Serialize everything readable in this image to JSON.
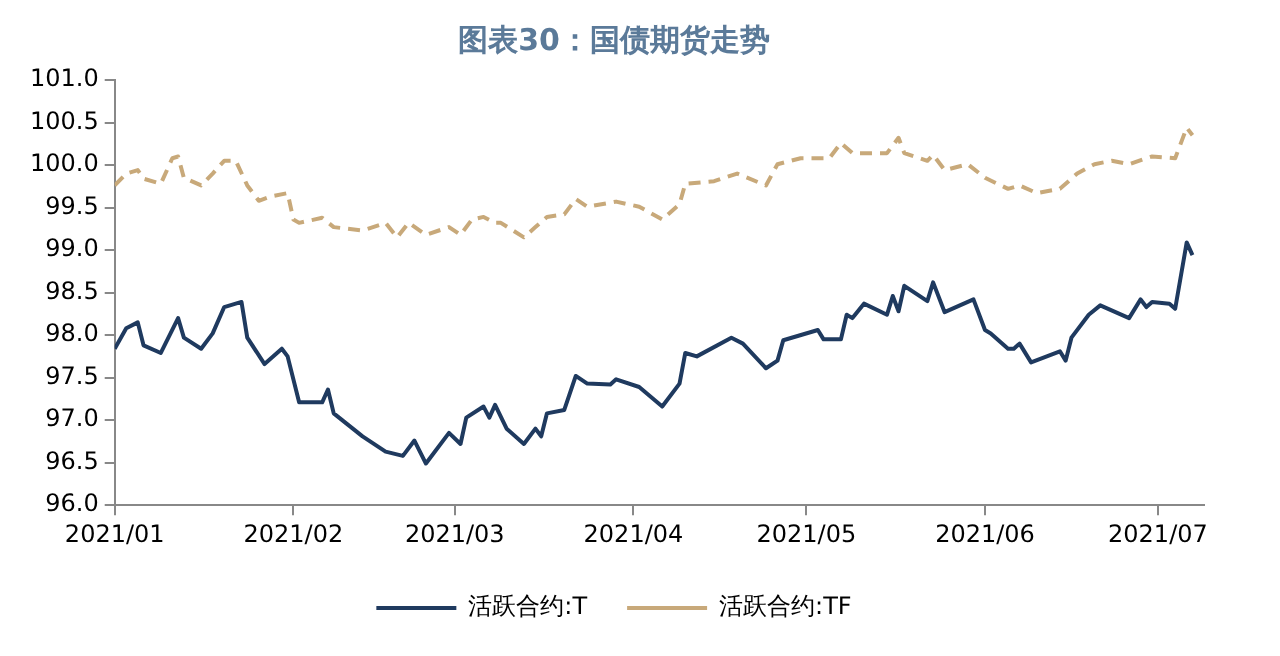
{
  "chart_data": {
    "type": "line",
    "title": "图表30：国债期货走势",
    "xlim": [
      "2021-01-01",
      "2021-07-09"
    ],
    "xticks": [
      {
        "value": "2021-01-01",
        "label": "2021/01"
      },
      {
        "value": "2021-02-01",
        "label": "2021/02"
      },
      {
        "value": "2021-03-01",
        "label": "2021/03"
      },
      {
        "value": "2021-04-01",
        "label": "2021/04"
      },
      {
        "value": "2021-05-01",
        "label": "2021/05"
      },
      {
        "value": "2021-06-01",
        "label": "2021/06"
      },
      {
        "value": "2021-07-01",
        "label": "2021/07"
      }
    ],
    "ylim": [
      96,
      101
    ],
    "yticks": [
      {
        "value": 96,
        "label": "96.0"
      },
      {
        "value": 96.5,
        "label": "96.5"
      },
      {
        "value": 97,
        "label": "97.0"
      },
      {
        "value": 97.5,
        "label": "97.5"
      },
      {
        "value": 98,
        "label": "98.0"
      },
      {
        "value": 98.5,
        "label": "98.5"
      },
      {
        "value": 99,
        "label": "99.0"
      },
      {
        "value": 99.5,
        "label": "99.5"
      },
      {
        "value": 100,
        "label": "100.0"
      },
      {
        "value": 100.5,
        "label": "100.5"
      },
      {
        "value": 101,
        "label": "101.0"
      }
    ],
    "grid": false,
    "legend": "bottom",
    "marker": "none",
    "series": [
      {
        "name": "活跃合约:T",
        "color": "#1f3a5f",
        "line_style": "solid",
        "x": [
          "2021-01-01",
          "2021-01-03",
          "2021-01-05",
          "2021-01-06",
          "2021-01-09",
          "2021-01-12",
          "2021-01-13",
          "2021-01-16",
          "2021-01-18",
          "2021-01-20",
          "2021-01-23",
          "2021-01-24",
          "2021-01-27",
          "2021-01-30",
          "2021-01-31",
          "2021-02-02",
          "2021-02-06",
          "2021-02-07",
          "2021-02-08",
          "2021-02-13",
          "2021-02-17",
          "2021-02-20",
          "2021-02-22",
          "2021-02-24",
          "2021-02-28",
          "2021-03-02",
          "2021-03-03",
          "2021-03-06",
          "2021-03-07",
          "2021-03-08",
          "2021-03-10",
          "2021-03-13",
          "2021-03-15",
          "2021-03-16",
          "2021-03-17",
          "2021-03-20",
          "2021-03-22",
          "2021-03-24",
          "2021-03-28",
          "2021-03-29",
          "2021-04-02",
          "2021-04-06",
          "2021-04-09",
          "2021-04-10",
          "2021-04-12",
          "2021-04-18",
          "2021-04-20",
          "2021-04-24",
          "2021-04-26",
          "2021-04-27",
          "2021-05-03",
          "2021-05-04",
          "2021-05-07",
          "2021-05-08",
          "2021-05-09",
          "2021-05-11",
          "2021-05-15",
          "2021-05-16",
          "2021-05-17",
          "2021-05-18",
          "2021-05-22",
          "2021-05-23",
          "2021-05-25",
          "2021-05-30",
          "2021-06-01",
          "2021-06-02",
          "2021-06-05",
          "2021-06-06",
          "2021-06-07",
          "2021-06-09",
          "2021-06-14",
          "2021-06-15",
          "2021-06-16",
          "2021-06-19",
          "2021-06-21",
          "2021-06-26",
          "2021-06-28",
          "2021-06-29",
          "2021-06-30",
          "2021-07-03",
          "2021-07-04",
          "2021-07-06",
          "2021-07-07"
        ],
        "values": [
          97.84,
          98.08,
          98.15,
          97.88,
          97.79,
          98.2,
          97.97,
          97.84,
          98.02,
          98.33,
          98.39,
          97.97,
          97.66,
          97.84,
          97.75,
          97.21,
          97.21,
          97.36,
          97.08,
          96.81,
          96.63,
          96.58,
          96.76,
          96.49,
          96.85,
          96.72,
          97.03,
          97.16,
          97.03,
          97.18,
          96.9,
          96.72,
          96.9,
          96.81,
          97.08,
          97.12,
          97.52,
          97.43,
          97.42,
          97.48,
          97.39,
          97.16,
          97.43,
          97.79,
          97.75,
          97.97,
          97.9,
          97.61,
          97.7,
          97.94,
          98.06,
          97.95,
          97.95,
          98.24,
          98.2,
          98.37,
          98.24,
          98.46,
          98.28,
          98.58,
          98.4,
          98.62,
          98.27,
          98.42,
          98.06,
          98.02,
          97.84,
          97.84,
          97.9,
          97.68,
          97.81,
          97.7,
          97.97,
          98.24,
          98.35,
          98.2,
          98.42,
          98.33,
          98.39,
          98.37,
          98.31,
          99.09,
          98.94
        ]
      },
      {
        "name": "活跃合约:TF",
        "color": "#c8a97a",
        "line_style": "dashed",
        "x": [
          "2021-01-01",
          "2021-01-03",
          "2021-01-05",
          "2021-01-06",
          "2021-01-09",
          "2021-01-11",
          "2021-01-12",
          "2021-01-13",
          "2021-01-16",
          "2021-01-18",
          "2021-01-20",
          "2021-01-22",
          "2021-01-24",
          "2021-01-26",
          "2021-01-28",
          "2021-01-31",
          "2021-02-01",
          "2021-02-02",
          "2021-02-06",
          "2021-02-08",
          "2021-02-13",
          "2021-02-17",
          "2021-02-19",
          "2021-02-21",
          "2021-02-24",
          "2021-02-28",
          "2021-03-02",
          "2021-03-04",
          "2021-03-06",
          "2021-03-08",
          "2021-03-09",
          "2021-03-13",
          "2021-03-15",
          "2021-03-17",
          "2021-03-20",
          "2021-03-22",
          "2021-03-24",
          "2021-03-29",
          "2021-04-02",
          "2021-04-06",
          "2021-04-09",
          "2021-04-10",
          "2021-04-15",
          "2021-04-19",
          "2021-04-24",
          "2021-04-26",
          "2021-04-30",
          "2021-05-05",
          "2021-05-07",
          "2021-05-09",
          "2021-05-15",
          "2021-05-17",
          "2021-05-18",
          "2021-05-22",
          "2021-05-23",
          "2021-05-25",
          "2021-05-29",
          "2021-06-01",
          "2021-06-05",
          "2021-06-07",
          "2021-06-10",
          "2021-06-14",
          "2021-06-17",
          "2021-06-20",
          "2021-06-23",
          "2021-06-26",
          "2021-06-29",
          "2021-06-30",
          "2021-07-04",
          "2021-07-06",
          "2021-07-07"
        ],
        "values": [
          99.76,
          99.9,
          99.94,
          99.84,
          99.78,
          100.08,
          100.1,
          99.85,
          99.76,
          99.9,
          100.05,
          100.05,
          99.76,
          99.58,
          99.63,
          99.67,
          99.36,
          99.32,
          99.38,
          99.27,
          99.23,
          99.32,
          99.15,
          99.32,
          99.18,
          99.27,
          99.18,
          99.36,
          99.39,
          99.32,
          99.32,
          99.15,
          99.27,
          99.39,
          99.42,
          99.6,
          99.51,
          99.57,
          99.51,
          99.36,
          99.54,
          99.78,
          99.81,
          99.9,
          99.76,
          100.01,
          100.08,
          100.08,
          100.26,
          100.14,
          100.14,
          100.32,
          100.14,
          100.05,
          100.12,
          99.94,
          100.01,
          99.85,
          99.72,
          99.76,
          99.67,
          99.72,
          99.9,
          100.01,
          100.05,
          100.01,
          100.08,
          100.1,
          100.08,
          100.44,
          100.35
        ]
      }
    ]
  }
}
